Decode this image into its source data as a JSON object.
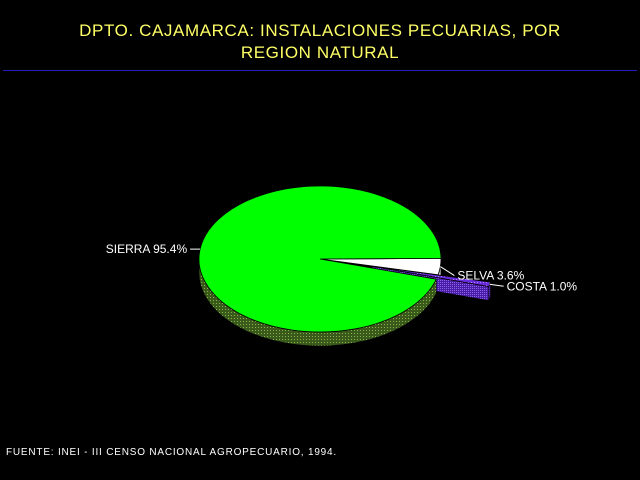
{
  "title": {
    "line1": "DPTO. CAJAMARCA: INSTALACIONES PECUARIAS, POR",
    "line2": "REGION NATURAL"
  },
  "chart_data": {
    "type": "pie",
    "title": "DPTO. CAJAMARCA: INSTALACIONES PECUARIAS, POR REGION NATURAL",
    "slices": [
      {
        "name": "SIERRA",
        "value": 95.4,
        "label": "SIERRA 95.4%",
        "color": "#00FF00",
        "exploded": false
      },
      {
        "name": "SELVA",
        "value": 3.6,
        "label": "SELVA 3.6%",
        "color": "#FFFFFF",
        "exploded": false
      },
      {
        "name": "COSTA",
        "value": 1.0,
        "label": "COSTA 1.0%",
        "color": "#7B2FE6",
        "exploded": true
      }
    ],
    "style": "3d"
  },
  "source": "FUENTE: INEI - III CENSO NACIONAL AGROPECUARIO, 1994.",
  "colors": {
    "background": "#000000",
    "title": "#FFFF66",
    "rule": "#2020C0",
    "text": "#FFFFFF"
  }
}
